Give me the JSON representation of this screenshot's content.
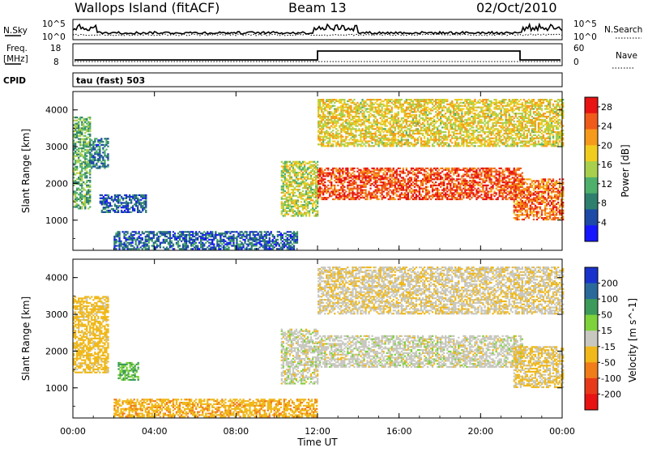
{
  "header": {
    "station": "Wallops Island (fitACF)",
    "beam": "Beam 13",
    "date": "02/Oct/2010"
  },
  "panels": {
    "nsky": {
      "label": "N.Sky",
      "ticks": [
        "10^5",
        "10^0"
      ]
    },
    "nsearch": {
      "label": "N.Search",
      "ticks": [
        "10^5",
        "10^0"
      ]
    },
    "freq": {
      "label_1": "Freq.",
      "label_2": "[MHz]",
      "ticks": [
        "18",
        "8"
      ]
    },
    "nave": {
      "label": "Nave",
      "ticks": [
        "60",
        "0"
      ]
    },
    "cpid": {
      "label": "CPID",
      "value": "tau (fast) 503"
    }
  },
  "chart_data": [
    {
      "type": "heatmap",
      "name": "Power",
      "xlabel": "Time UT",
      "ylabel": "Slant Range [km]",
      "x_ticks": [
        "00:00",
        "04:00",
        "08:00",
        "12:00",
        "16:00",
        "20:00",
        "00:00"
      ],
      "x_range_hours": [
        0,
        24
      ],
      "y_ticks": [
        1000,
        2000,
        3000,
        4000
      ],
      "y_range_km": [
        180,
        4500
      ],
      "colorbar": {
        "label": "Power [dB]",
        "ticks": [
          4,
          8,
          12,
          16,
          20,
          24,
          28
        ],
        "range": [
          0,
          30
        ],
        "colors": [
          "#1717ff",
          "#1d4aa6",
          "#2e7f6e",
          "#4fb06c",
          "#a8d04c",
          "#f0cc1f",
          "#f59a1a",
          "#f05a1a",
          "#e81313"
        ]
      },
      "features": [
        {
          "feature": "early evening scatter",
          "hours": [
            0,
            0.8
          ],
          "km": [
            1300,
            3800
          ],
          "dB": 12
        },
        {
          "feature": "patch",
          "hours": [
            0.8,
            1.7
          ],
          "km": [
            2400,
            3200
          ],
          "dB": 8
        },
        {
          "feature": "patch",
          "hours": [
            1.3,
            3.6
          ],
          "km": [
            1200,
            1700
          ],
          "dB": 6
        },
        {
          "feature": "near range scatter",
          "hours": [
            2.0,
            11.0
          ],
          "km": [
            200,
            700
          ],
          "dB": 6
        },
        {
          "feature": "rising band",
          "hours": [
            10.2,
            12.0
          ],
          "km": [
            1100,
            2600
          ],
          "dB": 16
        },
        {
          "feature": "main band",
          "hours": [
            12.0,
            22.0
          ],
          "km": [
            1550,
            2400
          ],
          "dB": 26
        },
        {
          "feature": "upper band",
          "hours": [
            12.0,
            24.0
          ],
          "km": [
            3000,
            4300
          ],
          "dB": 18
        },
        {
          "feature": "late band",
          "hours": [
            21.6,
            24.0
          ],
          "km": [
            1000,
            2100
          ],
          "dB": 24
        }
      ]
    },
    {
      "type": "heatmap",
      "name": "Velocity",
      "xlabel": "Time UT",
      "ylabel": "Slant Range [km]",
      "x_ticks": [
        "00:00",
        "04:00",
        "08:00",
        "12:00",
        "16:00",
        "20:00",
        "00:00"
      ],
      "x_range_hours": [
        0,
        24
      ],
      "y_ticks": [
        1000,
        2000,
        3000,
        4000
      ],
      "y_range_km": [
        180,
        4500
      ],
      "colorbar": {
        "label": "Velocity [m s^-1]",
        "ticks": [
          200,
          100,
          50,
          15,
          -15,
          -50,
          -100,
          -200
        ],
        "colors": [
          "#1a33cc",
          "#2a6a9a",
          "#3c9a5a",
          "#7ed23a",
          "#c8c8c0",
          "#f0b81a",
          "#f07c1a",
          "#e83a1a",
          "#e81313"
        ]
      },
      "features": [
        {
          "feature": "early scatter",
          "hours": [
            0,
            1.7
          ],
          "km": [
            1400,
            3500
          ],
          "velocity": -30
        },
        {
          "feature": "patch",
          "hours": [
            2.2,
            3.2
          ],
          "km": [
            1200,
            1700
          ],
          "velocity": 50
        },
        {
          "feature": "near range scatter",
          "hours": [
            2.0,
            12.0
          ],
          "km": [
            200,
            700
          ],
          "velocity": -40
        },
        {
          "feature": "rising band",
          "hours": [
            10.2,
            12.0
          ],
          "km": [
            1100,
            2600
          ],
          "velocity": 0
        },
        {
          "feature": "main band",
          "hours": [
            12.0,
            22.0
          ],
          "km": [
            1550,
            2400
          ],
          "velocity": 0
        },
        {
          "feature": "upper band",
          "hours": [
            12.0,
            24.0
          ],
          "km": [
            3000,
            4300
          ],
          "velocity": -10
        },
        {
          "feature": "late band",
          "hours": [
            21.6,
            24.0
          ],
          "km": [
            1000,
            2100
          ],
          "velocity": -20
        }
      ]
    }
  ]
}
